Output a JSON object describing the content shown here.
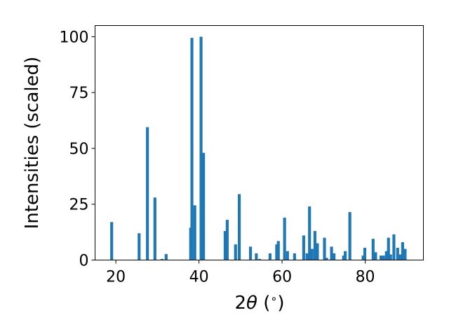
{
  "chart_data": {
    "type": "bar",
    "xlabel": "2θ (∘)",
    "xlabel_parts": {
      "pre": "2",
      "theta": "θ",
      "open": " (",
      "deg": "∘",
      "close": ")"
    },
    "ylabel": "Intensities (scaled)",
    "xlim": [
      15,
      94
    ],
    "ylim": [
      0,
      105
    ],
    "xticks": [
      20,
      40,
      60,
      80
    ],
    "yticks": [
      0,
      25,
      50,
      75,
      100
    ],
    "bar_width": 0.7,
    "bar_color": "#1f77b4",
    "x": [
      19.0,
      25.6,
      27.6,
      29.4,
      31.1,
      32.1,
      38.0,
      38.3,
      39.0,
      40.5,
      41.1,
      46.3,
      46.8,
      48.8,
      49.7,
      52.4,
      53.8,
      54.6,
      57.1,
      58.7,
      59.1,
      60.6,
      61.3,
      63.0,
      65.2,
      66.0,
      66.6,
      67.2,
      67.9,
      68.5,
      70.2,
      70.7,
      71.9,
      72.5,
      74.8,
      75.2,
      76.3,
      79.5,
      79.9,
      81.9,
      82.5,
      83.8,
      84.4,
      85.1,
      85.6,
      86.1,
      86.9,
      87.8,
      88.4,
      89.0,
      89.6
    ],
    "values": [
      17,
      12,
      59.5,
      28,
      0.5,
      2.7,
      14.5,
      99.5,
      24.5,
      100,
      48,
      13,
      18,
      7,
      29.5,
      6,
      3,
      0.5,
      3,
      7,
      8.5,
      19,
      4,
      3,
      11,
      3,
      24,
      5,
      13,
      7.5,
      10,
      1,
      6,
      3,
      2,
      4,
      21.5,
      2,
      5.5,
      9.5,
      3.5,
      2,
      2,
      4,
      10,
      2.5,
      11.5,
      5.5,
      2.5,
      8,
      5
    ]
  }
}
